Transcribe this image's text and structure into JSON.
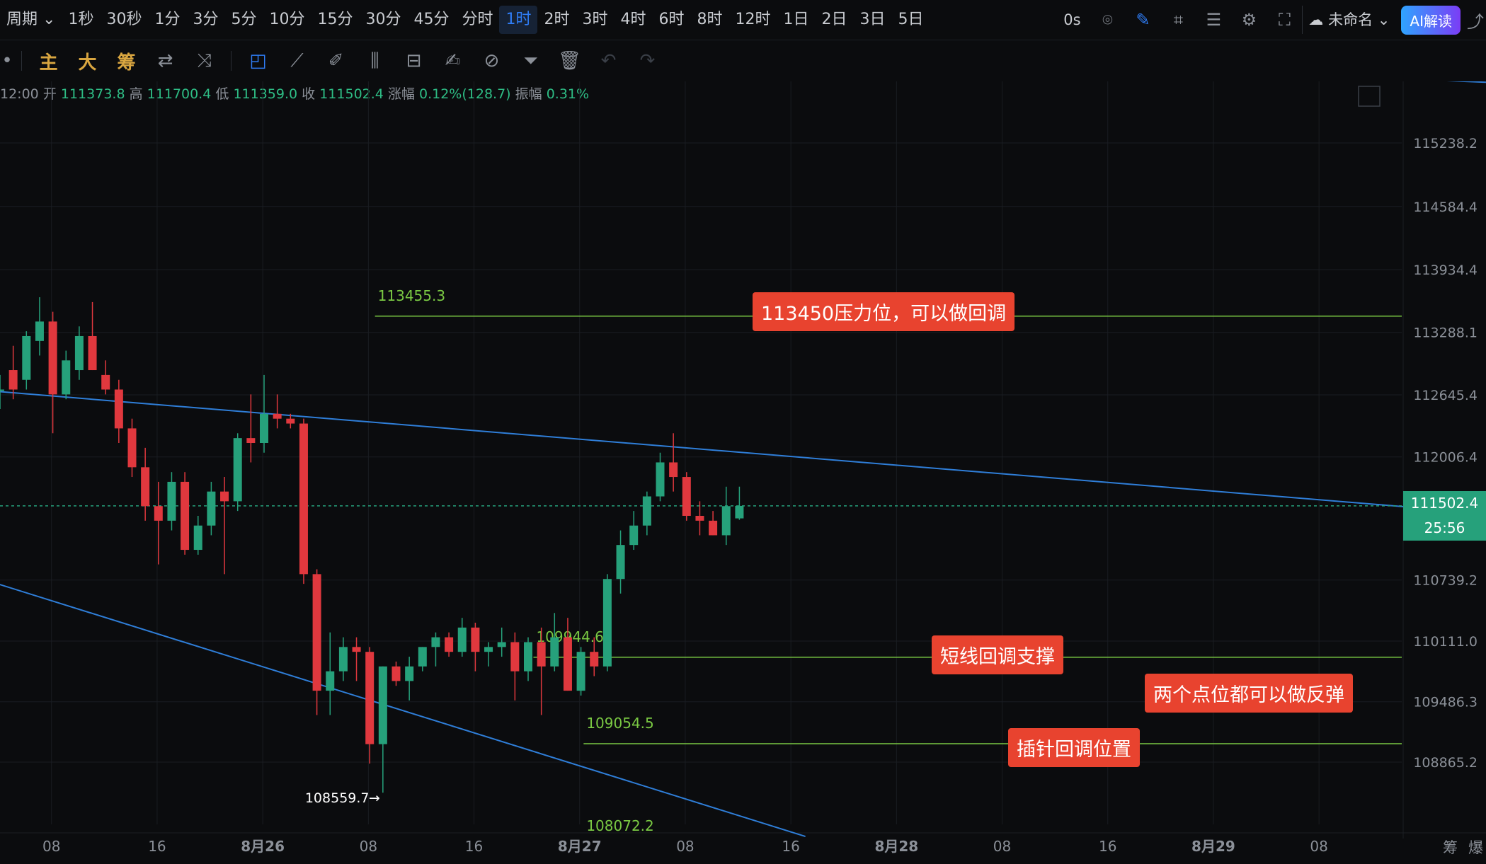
{
  "toolbar": {
    "period_label": "周期",
    "timeframes": [
      "1秒",
      "30秒",
      "1分",
      "3分",
      "5分",
      "10分",
      "15分",
      "30分",
      "45分",
      "分时",
      "1时",
      "2时",
      "3时",
      "4时",
      "6时",
      "8时",
      "12时",
      "1日",
      "2日",
      "3日",
      "5日"
    ],
    "active_timeframe": "1时",
    "countdown": "0s",
    "layout_name": "未命名",
    "ai_button": "AI解读",
    "icons": [
      "camera-icon",
      "pen-icon",
      "crop-icon",
      "list-icon",
      "settings-icon",
      "fullscreen-icon",
      "cloud-icon",
      "chevron-down-icon",
      "share-icon"
    ]
  },
  "draw_toolbar": {
    "labels": [
      "主",
      "大",
      "筹"
    ],
    "icons": [
      "swap-icon",
      "compare-icon",
      "cursor-icon",
      "ruler-icon",
      "brush-icon",
      "candle-tool-icon",
      "bar-tool-icon",
      "note-icon",
      "magnet-icon",
      "filter-icon",
      "trash-icon",
      "undo-icon",
      "redo-icon"
    ]
  },
  "ohlc": {
    "time": "12:00",
    "open_label": "开",
    "open": "111373.8",
    "high_label": "高",
    "high": "111700.4",
    "low_label": "低",
    "low": "111359.0",
    "close_label": "收",
    "close": "111502.4",
    "change_label": "涨幅",
    "change": "0.12%(128.7)",
    "amp_label": "振幅",
    "amp": "0.31%"
  },
  "annotations": {
    "resistance": "113450压力位，可以做回调",
    "short_support": "短线回调支撑",
    "both_levels": "两个点位都可以做反弹",
    "wick_level": "插针回调位置"
  },
  "price_chip": "111502.4",
  "countdown_chip": "25:56",
  "footer_labels": [
    "筹",
    "爆"
  ],
  "colors": {
    "up": "#26a17b",
    "down": "#e0383e",
    "trendline": "#2f7ed8",
    "level_line": "#7ac943",
    "callout": "#e8432f",
    "background": "#0b0c0e"
  },
  "chart_data": {
    "type": "candlestick",
    "timeframe": "1时",
    "y_ticks": [
      115238.2,
      114584.4,
      113934.4,
      113288.1,
      112645.4,
      112006.4,
      110739.2,
      110111.0,
      109486.3,
      108865.2
    ],
    "y_range": [
      108000,
      116000
    ],
    "x_tick_labels": [
      "08",
      "16",
      "8月26",
      "08",
      "16",
      "8月27",
      "08",
      "16",
      "8月28",
      "08",
      "16",
      "8月29",
      "08"
    ],
    "current_price": 111502.4,
    "low_marker": 108559.7,
    "levels": [
      {
        "price": 113455.3,
        "label": "113455.3"
      },
      {
        "price": 109944.6,
        "label": "109944.6"
      },
      {
        "price": 109054.5,
        "label": "109054.5"
      },
      {
        "price": 108072.2,
        "label": "108072.2"
      }
    ],
    "trendlines": [
      {
        "name": "upper",
        "from_bar": -2,
        "from_price": 112700,
        "to_bar": 113,
        "to_price": 111420
      },
      {
        "name": "lower",
        "from_bar": -3,
        "from_price": 110820,
        "to_bar": 61,
        "to_price": 108100
      },
      {
        "name": "top",
        "from_bar": 79,
        "from_price": 116050,
        "to_bar": 113,
        "to_price": 115860
      }
    ],
    "candles": [
      {
        "o": 112700,
        "h": 112850,
        "l": 112500,
        "c": 112700
      },
      {
        "o": 112900,
        "h": 113150,
        "l": 112600,
        "c": 112700
      },
      {
        "o": 112800,
        "h": 113300,
        "l": 112700,
        "c": 113250
      },
      {
        "o": 113200,
        "h": 113650,
        "l": 113050,
        "c": 113400
      },
      {
        "o": 113400,
        "h": 113500,
        "l": 112250,
        "c": 112650
      },
      {
        "o": 112650,
        "h": 113100,
        "l": 112600,
        "c": 113000
      },
      {
        "o": 112900,
        "h": 113350,
        "l": 112800,
        "c": 113250
      },
      {
        "o": 113250,
        "h": 113600,
        "l": 112900,
        "c": 112900
      },
      {
        "o": 112850,
        "h": 113000,
        "l": 112650,
        "c": 112700
      },
      {
        "o": 112700,
        "h": 112800,
        "l": 112150,
        "c": 112300
      },
      {
        "o": 112300,
        "h": 112400,
        "l": 111800,
        "c": 111900
      },
      {
        "o": 111900,
        "h": 112100,
        "l": 111350,
        "c": 111500
      },
      {
        "o": 111500,
        "h": 111750,
        "l": 110900,
        "c": 111350
      },
      {
        "o": 111350,
        "h": 111850,
        "l": 111250,
        "c": 111750
      },
      {
        "o": 111750,
        "h": 111850,
        "l": 111000,
        "c": 111050
      },
      {
        "o": 111050,
        "h": 111400,
        "l": 111000,
        "c": 111300
      },
      {
        "o": 111300,
        "h": 111750,
        "l": 111200,
        "c": 111650
      },
      {
        "o": 111650,
        "h": 111800,
        "l": 110800,
        "c": 111550
      },
      {
        "o": 111550,
        "h": 112250,
        "l": 111450,
        "c": 112200
      },
      {
        "o": 112200,
        "h": 112650,
        "l": 111950,
        "c": 112150
      },
      {
        "o": 112150,
        "h": 112850,
        "l": 112050,
        "c": 112450
      },
      {
        "o": 112450,
        "h": 112650,
        "l": 112300,
        "c": 112400
      },
      {
        "o": 112400,
        "h": 112450,
        "l": 112300,
        "c": 112350
      },
      {
        "o": 112350,
        "h": 112400,
        "l": 110700,
        "c": 110800
      },
      {
        "o": 110800,
        "h": 110850,
        "l": 109350,
        "c": 109600
      },
      {
        "o": 109600,
        "h": 110200,
        "l": 109350,
        "c": 109800
      },
      {
        "o": 109800,
        "h": 110150,
        "l": 109700,
        "c": 110050
      },
      {
        "o": 110050,
        "h": 110150,
        "l": 109700,
        "c": 110000
      },
      {
        "o": 110000,
        "h": 110050,
        "l": 108850,
        "c": 109050
      },
      {
        "o": 109050,
        "h": 109850,
        "l": 108550,
        "c": 109850
      },
      {
        "o": 109850,
        "h": 109900,
        "l": 109650,
        "c": 109700
      },
      {
        "o": 109700,
        "h": 109950,
        "l": 109500,
        "c": 109850
      },
      {
        "o": 109850,
        "h": 110050,
        "l": 109800,
        "c": 110050
      },
      {
        "o": 110050,
        "h": 110200,
        "l": 109850,
        "c": 110150
      },
      {
        "o": 110150,
        "h": 110200,
        "l": 109950,
        "c": 110000
      },
      {
        "o": 110000,
        "h": 110350,
        "l": 109950,
        "c": 110250
      },
      {
        "o": 110250,
        "h": 110300,
        "l": 109800,
        "c": 110000
      },
      {
        "o": 110000,
        "h": 110100,
        "l": 109850,
        "c": 110050
      },
      {
        "o": 110050,
        "h": 110250,
        "l": 109950,
        "c": 110100
      },
      {
        "o": 110100,
        "h": 110200,
        "l": 109500,
        "c": 109800
      },
      {
        "o": 109800,
        "h": 110150,
        "l": 109700,
        "c": 110100
      },
      {
        "o": 110100,
        "h": 110250,
        "l": 109350,
        "c": 109850
      },
      {
        "o": 109850,
        "h": 110400,
        "l": 109800,
        "c": 110150
      },
      {
        "o": 110150,
        "h": 110350,
        "l": 109600,
        "c": 109600
      },
      {
        "o": 109600,
        "h": 110050,
        "l": 109550,
        "c": 110000
      },
      {
        "o": 110000,
        "h": 110150,
        "l": 109750,
        "c": 109850
      },
      {
        "o": 109850,
        "h": 110800,
        "l": 109800,
        "c": 110750
      },
      {
        "o": 110750,
        "h": 111250,
        "l": 110600,
        "c": 111100
      },
      {
        "o": 111100,
        "h": 111450,
        "l": 111050,
        "c": 111300
      },
      {
        "o": 111300,
        "h": 111650,
        "l": 111200,
        "c": 111600
      },
      {
        "o": 111600,
        "h": 112050,
        "l": 111550,
        "c": 111950
      },
      {
        "o": 111950,
        "h": 112250,
        "l": 111650,
        "c": 111800
      },
      {
        "o": 111800,
        "h": 111850,
        "l": 111350,
        "c": 111400
      },
      {
        "o": 111400,
        "h": 111550,
        "l": 111200,
        "c": 111350
      },
      {
        "o": 111350,
        "h": 111450,
        "l": 111200,
        "c": 111200
      },
      {
        "o": 111200,
        "h": 111700,
        "l": 111100,
        "c": 111500
      },
      {
        "o": 111373.8,
        "h": 111700.4,
        "l": 111359.0,
        "c": 111502.4
      }
    ]
  }
}
